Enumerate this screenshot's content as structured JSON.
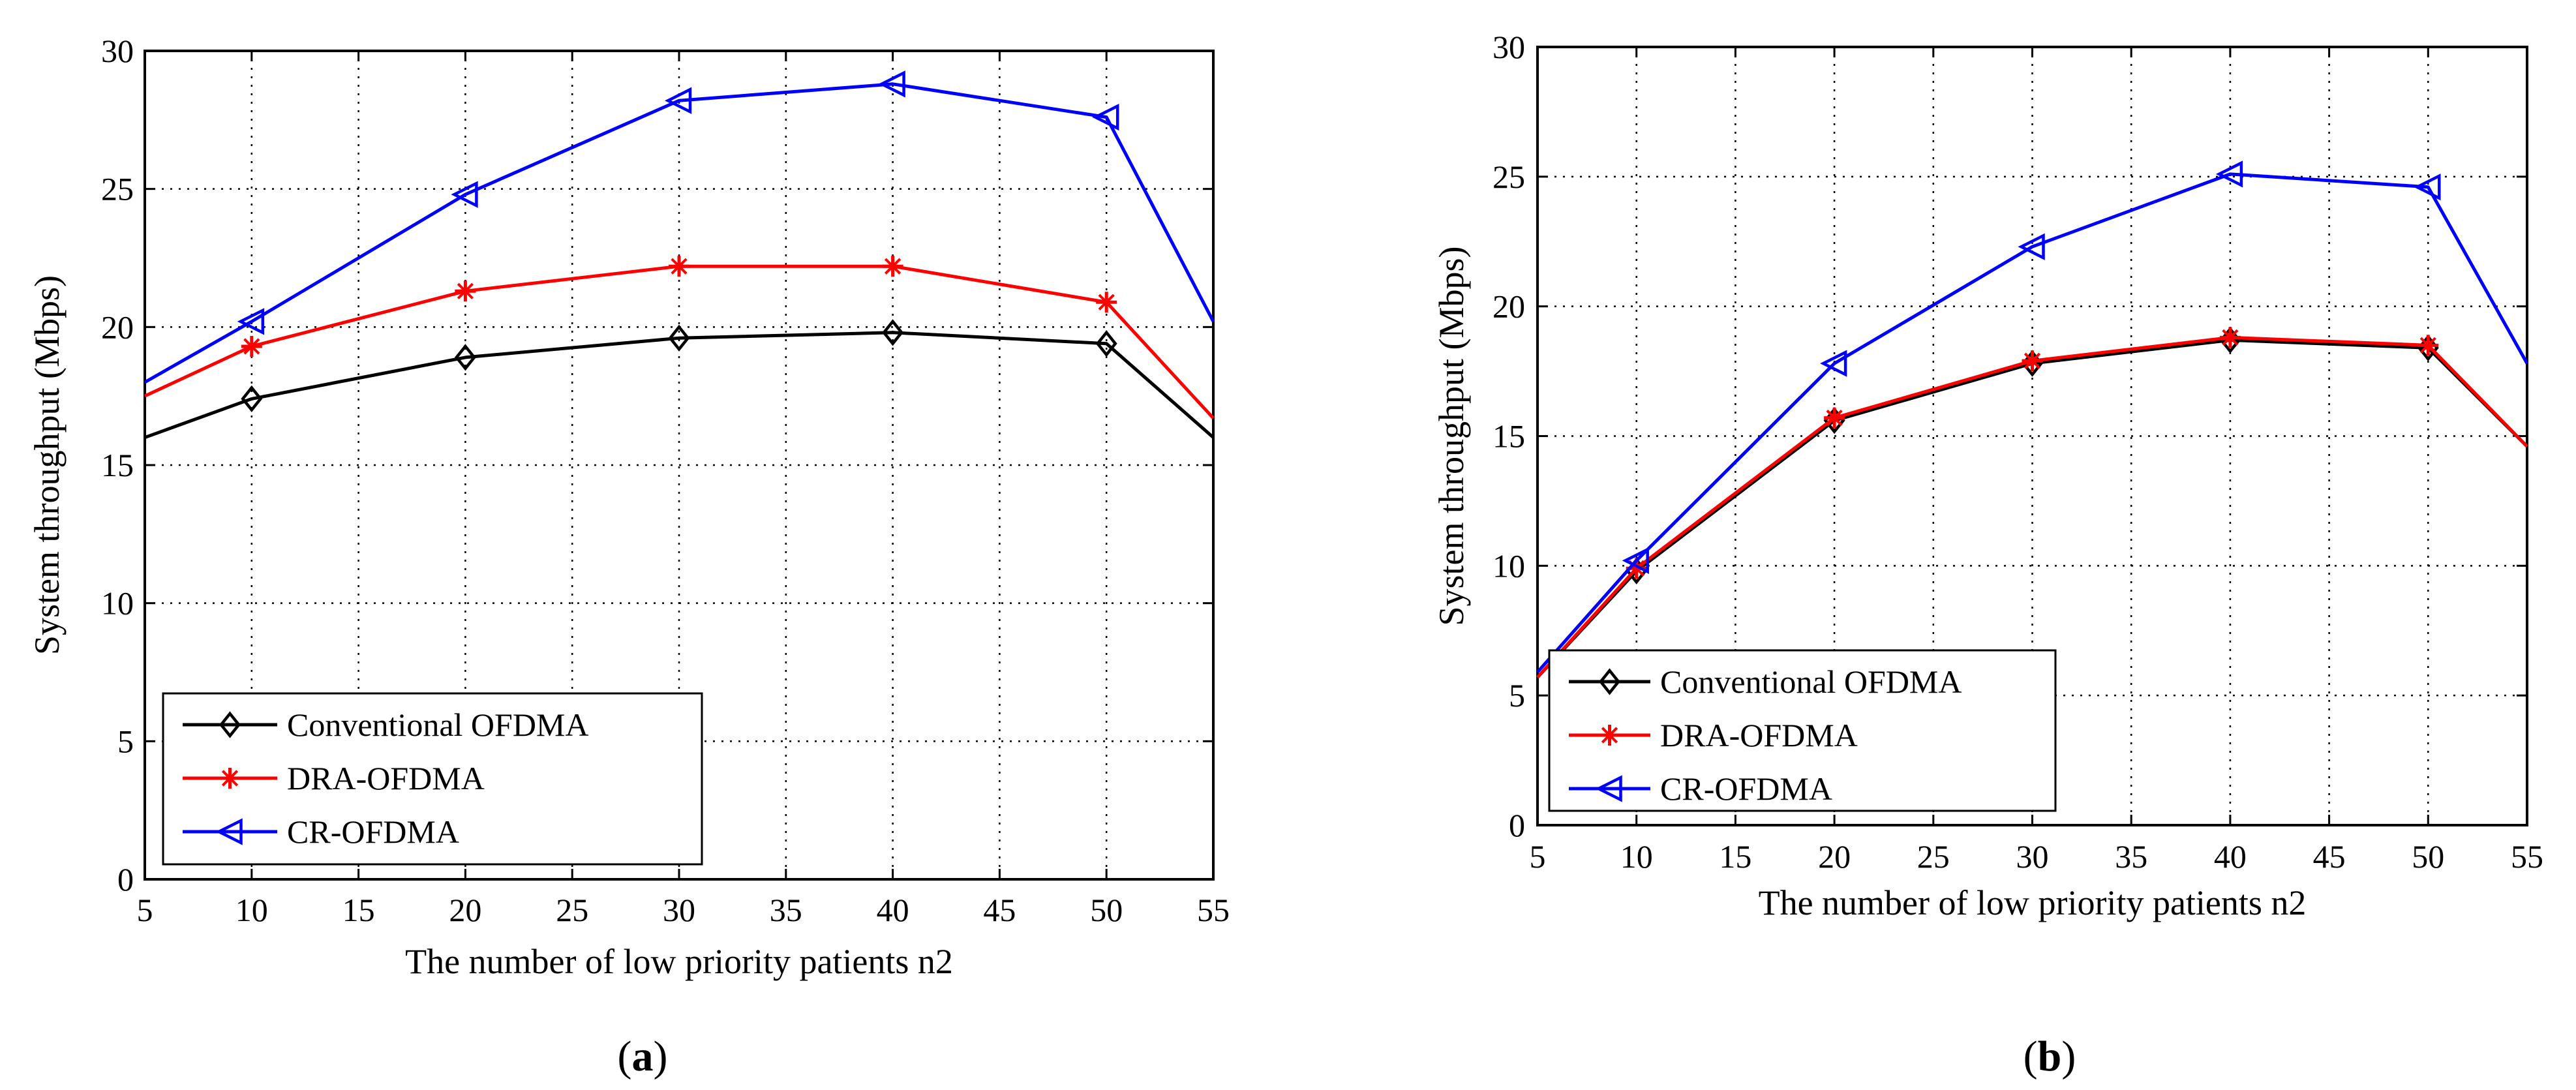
{
  "charts": [
    {
      "caption_open": "(",
      "caption_letter": "a",
      "caption_close": ")"
    },
    {
      "caption_open": "(",
      "caption_letter": "b",
      "caption_close": ")"
    }
  ],
  "chart_data": [
    {
      "type": "line",
      "title": "",
      "xlabel": "The number of low priority patients n2",
      "ylabel": "System throughput (Mbps)",
      "xlim": [
        5,
        55
      ],
      "ylim": [
        0,
        30
      ],
      "xticks": [
        5,
        10,
        15,
        20,
        25,
        30,
        35,
        40,
        45,
        50,
        55
      ],
      "yticks": [
        0,
        5,
        10,
        15,
        20,
        25,
        30
      ],
      "grid": true,
      "legend_position": "bottom-left",
      "x": [
        5,
        10,
        20,
        30,
        40,
        50,
        55
      ],
      "series": [
        {
          "name": "Conventional OFDMA",
          "color": "#000000",
          "marker": "diamond",
          "values": [
            16.0,
            17.4,
            18.9,
            19.6,
            19.8,
            19.4,
            16.0
          ]
        },
        {
          "name": "DRA-OFDMA",
          "color": "#ff0000",
          "marker": "star",
          "values": [
            17.5,
            19.3,
            21.3,
            22.2,
            22.2,
            20.9,
            16.7
          ]
        },
        {
          "name": "CR-OFDMA",
          "color": "#0000ff",
          "marker": "triangle-left",
          "values": [
            18.0,
            20.2,
            24.8,
            28.2,
            28.8,
            27.6,
            20.2
          ]
        }
      ]
    },
    {
      "type": "line",
      "title": "",
      "xlabel": "The number of low priority patients n2",
      "ylabel": "System throughput (Mbps)",
      "xlim": [
        5,
        55
      ],
      "ylim": [
        0,
        30
      ],
      "xticks": [
        5,
        10,
        15,
        20,
        25,
        30,
        35,
        40,
        45,
        50,
        55
      ],
      "yticks": [
        0,
        5,
        10,
        15,
        20,
        25,
        30
      ],
      "grid": true,
      "legend_position": "bottom-left",
      "x": [
        5,
        10,
        20,
        30,
        40,
        50,
        55
      ],
      "series": [
        {
          "name": "Conventional OFDMA",
          "color": "#000000",
          "marker": "diamond",
          "values": [
            5.7,
            9.8,
            15.6,
            17.8,
            18.7,
            18.4,
            14.6
          ]
        },
        {
          "name": "DRA-OFDMA",
          "color": "#ff0000",
          "marker": "star",
          "values": [
            5.7,
            9.9,
            15.7,
            17.9,
            18.8,
            18.5,
            14.6
          ]
        },
        {
          "name": "CR-OFDMA",
          "color": "#0000ff",
          "marker": "triangle-left",
          "values": [
            5.9,
            10.2,
            17.8,
            22.3,
            25.1,
            24.6,
            17.8
          ]
        }
      ]
    }
  ]
}
